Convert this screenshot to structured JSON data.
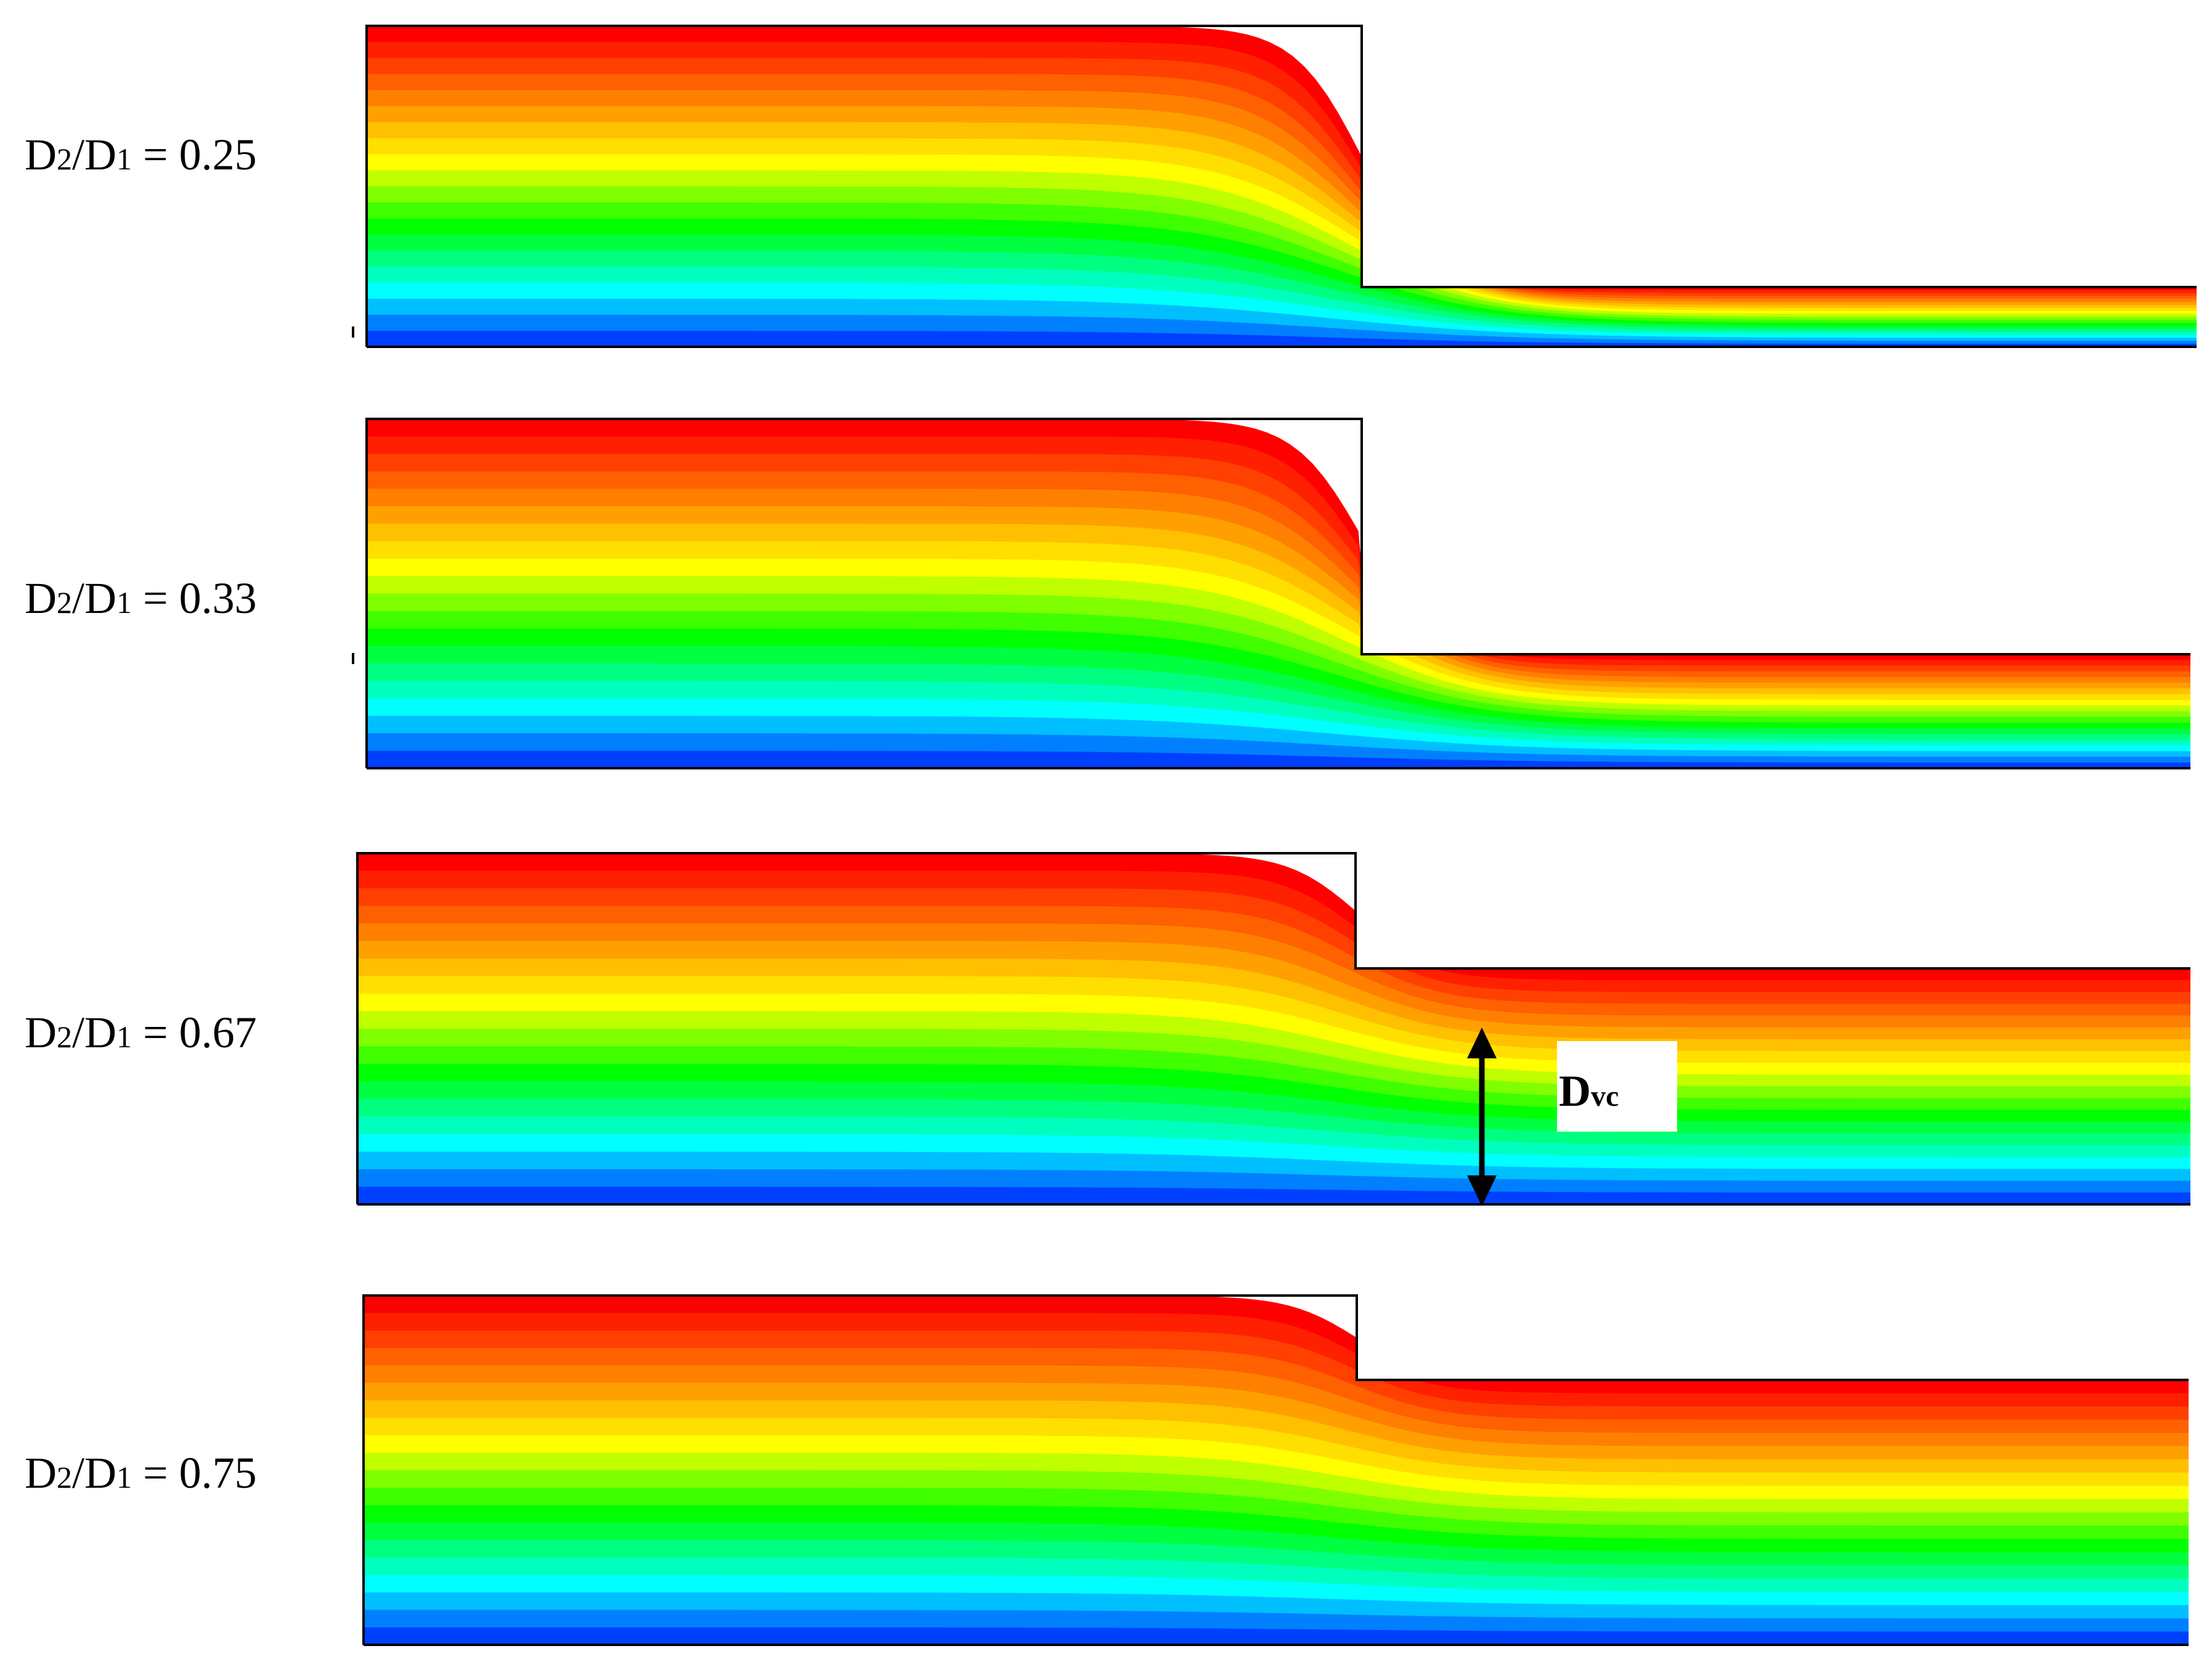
{
  "panels": [
    {
      "ratio": "0.25",
      "step_ratio": 0.25
    },
    {
      "ratio": "0.33",
      "step_ratio": 0.33
    },
    {
      "ratio": "0.67",
      "step_ratio": 0.67,
      "annotated": true
    },
    {
      "ratio": "0.75",
      "step_ratio": 0.75
    }
  ],
  "label_parts": {
    "d_main": "D",
    "sub_2": "2",
    "slash": "/",
    "sub_1": "1",
    "equals": " = "
  },
  "annotation": {
    "symbol": "D",
    "subscript": "vc"
  },
  "colormap": [
    "#0000ff",
    "#00ffff",
    "#00ff00",
    "#ffff00",
    "#ff8000",
    "#ff0000"
  ],
  "contour_levels": 20
}
